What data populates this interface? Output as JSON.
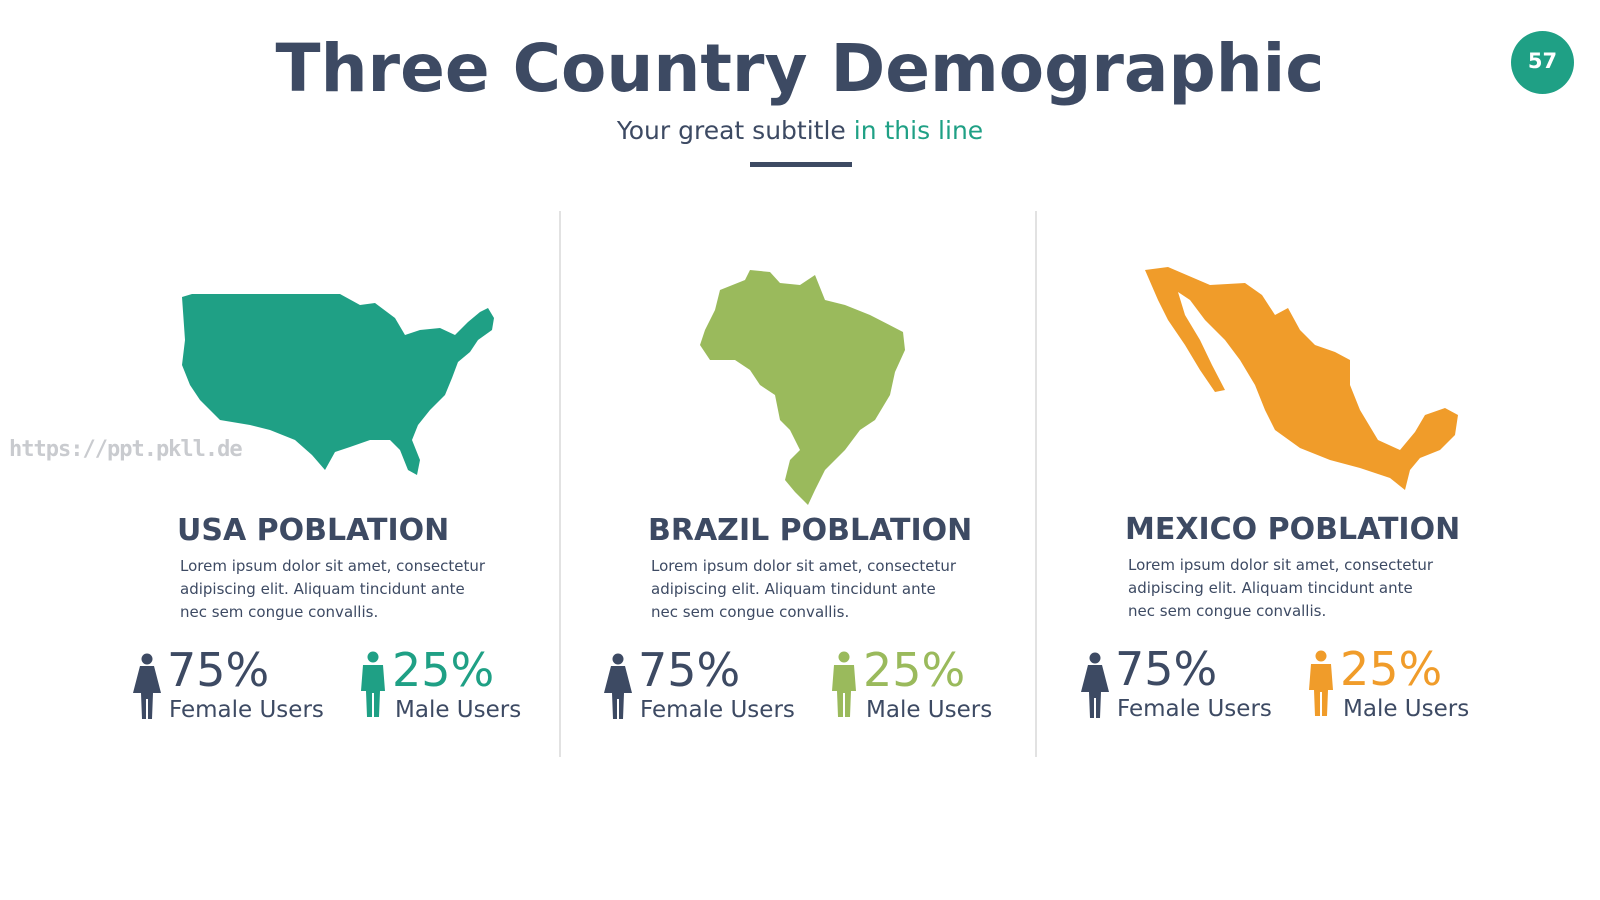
{
  "header": {
    "title": "Three Country Demographic",
    "subtitle": "Your great subtitle",
    "subtitle_highlight": "in this line",
    "page_number": "57"
  },
  "watermark": "https://ppt.pkll.de",
  "countries": [
    {
      "name": "USA POBLATION",
      "color": "#1fa085",
      "description_lines": [
        "Lorem ipsum dolor sit amet, consectetur",
        "adipiscing elit. Aliquam tincidunt ante",
        "nec sem congue convallis."
      ],
      "female_percent": "75%",
      "female_label": "Female Users",
      "male_percent": "25%",
      "male_label": "Male Users"
    },
    {
      "name": "BRAZIL POBLATION",
      "color": "#9aba5c",
      "description_lines": [
        "Lorem ipsum dolor sit amet, consectetur",
        "adipiscing elit. Aliquam tincidunt ante",
        "nec sem congue convallis."
      ],
      "female_percent": "75%",
      "female_label": "Female Users",
      "male_percent": "25%",
      "male_label": "Male Users"
    },
    {
      "name": "MEXICO POBLATION",
      "color": "#f09c2a",
      "description_lines": [
        "Lorem ipsum dolor sit amet, consectetur",
        "adipiscing elit. Aliquam tincidunt ante",
        "nec sem congue convallis."
      ],
      "female_percent": "75%",
      "female_label": "Female Users",
      "male_percent": "25%",
      "male_label": "Male Users"
    }
  ]
}
